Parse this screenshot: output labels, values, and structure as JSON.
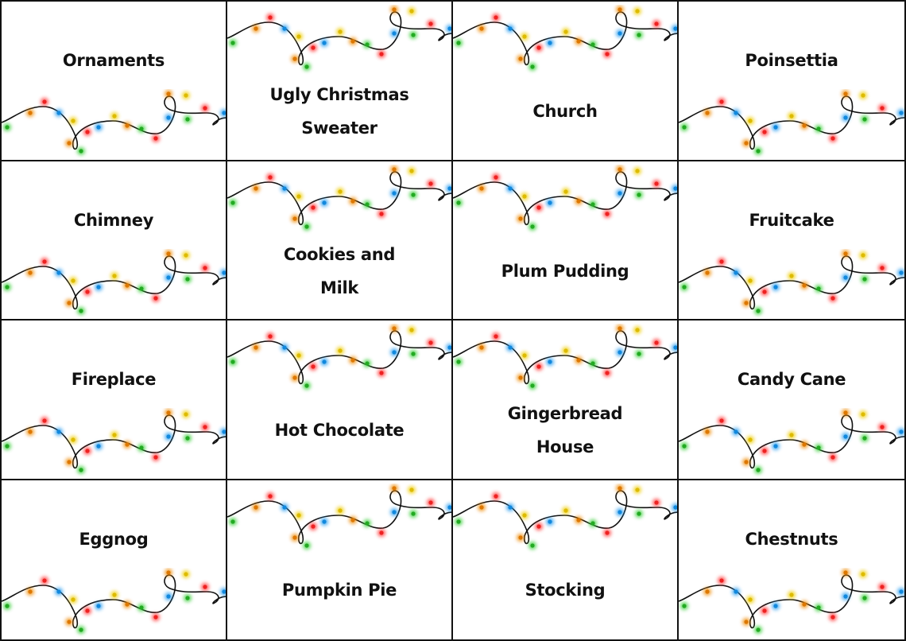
{
  "grid": {
    "rows": [
      [
        "Ornaments",
        "Ugly Christmas Sweater",
        "Church",
        "Poinsettia"
      ],
      [
        "Chimney",
        "Cookies and Milk",
        "Plum Pudding",
        "Fruitcake"
      ],
      [
        "Fireplace",
        "Hot Chocolate",
        "Gingerbread House",
        "Candy Cane"
      ],
      [
        "Eggnog",
        "Pumpkin Pie",
        "Stocking",
        "Chestnuts"
      ]
    ]
  }
}
